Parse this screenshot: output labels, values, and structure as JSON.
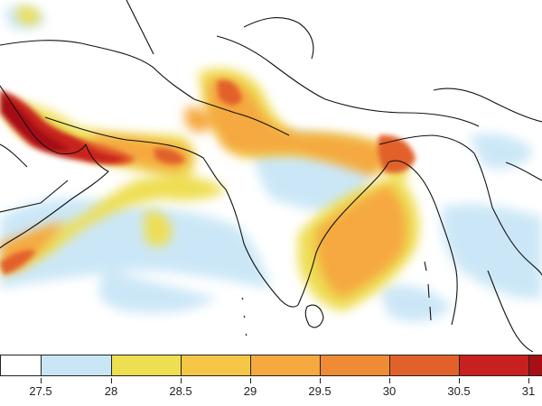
{
  "colorbar": {
    "colors": [
      "#ffffff",
      "#c9e6f7",
      "#eede52",
      "#f6c746",
      "#f5a93f",
      "#ef8b35",
      "#e2612a",
      "#c7201f",
      "#a50f15"
    ],
    "tick_labels": [
      "27.5",
      "28",
      "28.5",
      "29",
      "29.5",
      "30",
      "30.5",
      "31"
    ]
  },
  "chart_data": {
    "type": "heatmap",
    "title": "",
    "xlabel": "",
    "ylabel": "",
    "legend_placement": "bottom",
    "bins": [
      {
        "range": [
          null,
          27.5
        ],
        "color": "#ffffff"
      },
      {
        "range": [
          27.5,
          28
        ],
        "color": "#c9e6f7"
      },
      {
        "range": [
          28,
          28.5
        ],
        "color": "#eede52"
      },
      {
        "range": [
          28.5,
          29
        ],
        "color": "#f6c746"
      },
      {
        "range": [
          29,
          29.5
        ],
        "color": "#f5a93f"
      },
      {
        "range": [
          29.5,
          30
        ],
        "color": "#ef8b35"
      },
      {
        "range": [
          30,
          30.5
        ],
        "color": "#e2612a"
      },
      {
        "range": [
          30.5,
          31
        ],
        "color": "#c7201f"
      },
      {
        "range": [
          31,
          null
        ],
        "color": "#a50f15"
      }
    ]
  }
}
